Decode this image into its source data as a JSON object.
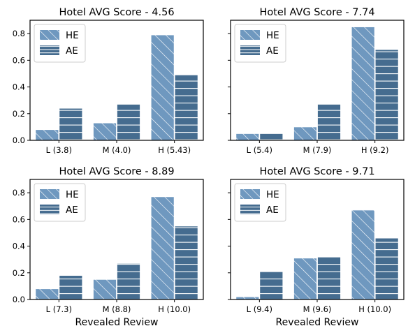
{
  "figure": {
    "xlabel": "Revealed Review",
    "colors": {
      "HE": "#6f98bf",
      "AE": "#456c8f",
      "hatch": "#ffffff"
    }
  },
  "chart_data": [
    {
      "type": "bar",
      "title": "Hotel AVG Score - 4.56",
      "categories": [
        "L (3.8)",
        "M (4.0)",
        "H (5.43)"
      ],
      "series": [
        {
          "name": "HE",
          "values": [
            0.08,
            0.13,
            0.79
          ],
          "pattern": "diagonal-hatch"
        },
        {
          "name": "AE",
          "values": [
            0.24,
            0.27,
            0.49
          ],
          "pattern": "horizontal-lines"
        }
      ],
      "ylim": [
        0,
        0.9
      ],
      "yticks": [
        0.0,
        0.2,
        0.4,
        0.6,
        0.8
      ],
      "ytick_labels": [
        "0.0",
        "0.2",
        "0.4",
        "0.6",
        "0.8"
      ],
      "xlabel": "",
      "legend": "top-left",
      "grid": false
    },
    {
      "type": "bar",
      "title": "Hotel AVG Score - 7.74",
      "categories": [
        "L (5.4)",
        "M (7.9)",
        "H (9.2)"
      ],
      "series": [
        {
          "name": "HE",
          "values": [
            0.05,
            0.1,
            0.85
          ],
          "pattern": "diagonal-hatch"
        },
        {
          "name": "AE",
          "values": [
            0.05,
            0.27,
            0.68
          ],
          "pattern": "horizontal-lines"
        }
      ],
      "ylim": [
        0,
        0.9
      ],
      "yticks": [
        0.0,
        0.2,
        0.4,
        0.6,
        0.8
      ],
      "ytick_labels": [],
      "xlabel": "",
      "legend": "top-left",
      "grid": false
    },
    {
      "type": "bar",
      "title": "Hotel AVG Score - 8.89",
      "categories": [
        "L (7.3)",
        "M (8.8)",
        "H (10.0)"
      ],
      "series": [
        {
          "name": "HE",
          "values": [
            0.08,
            0.15,
            0.77
          ],
          "pattern": "diagonal-hatch"
        },
        {
          "name": "AE",
          "values": [
            0.18,
            0.27,
            0.55
          ],
          "pattern": "horizontal-lines"
        }
      ],
      "ylim": [
        0,
        0.9
      ],
      "yticks": [
        0.0,
        0.2,
        0.4,
        0.6,
        0.8
      ],
      "ytick_labels": [
        "0.0",
        "0.2",
        "0.4",
        "0.6",
        "0.8"
      ],
      "xlabel": "Revealed Review",
      "legend": "top-left",
      "grid": false
    },
    {
      "type": "bar",
      "title": "Hotel AVG Score - 9.71",
      "categories": [
        "L (9.4)",
        "M (9.6)",
        "H (10.0)"
      ],
      "series": [
        {
          "name": "HE",
          "values": [
            0.02,
            0.31,
            0.67
          ],
          "pattern": "diagonal-hatch"
        },
        {
          "name": "AE",
          "values": [
            0.21,
            0.32,
            0.46
          ],
          "pattern": "horizontal-lines"
        }
      ],
      "ylim": [
        0,
        0.9
      ],
      "yticks": [
        0.0,
        0.2,
        0.4,
        0.6,
        0.8
      ],
      "ytick_labels": [],
      "xlabel": "Revealed Review",
      "legend": "top-left",
      "grid": false
    }
  ]
}
